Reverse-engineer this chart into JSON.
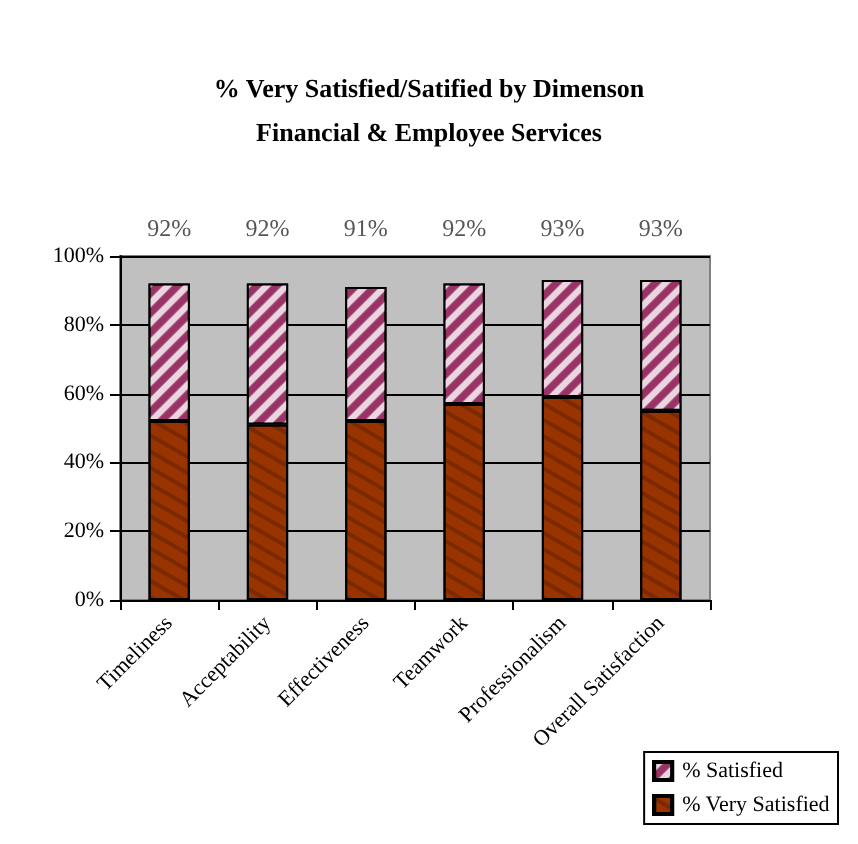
{
  "chart_data": {
    "type": "bar",
    "title": "% Very Satisfied/Satified by Dimenson\nFinancial & Employee Services",
    "categories": [
      "Timeliness",
      "Acceptability",
      "Effectiveness",
      "Teamwork",
      "Professionalism",
      "Overall Satisfaction"
    ],
    "stacked": true,
    "series": [
      {
        "name": "% Very Satisfied",
        "color": "#993300",
        "values": [
          52,
          51,
          52,
          57,
          59,
          55
        ]
      },
      {
        "name": "% Satisfied",
        "color": "#993366",
        "values": [
          40,
          41,
          39,
          35,
          34,
          38
        ]
      }
    ],
    "totals": [
      "92%",
      "92%",
      "91%",
      "92%",
      "93%",
      "93%"
    ],
    "ylim": [
      0,
      100
    ],
    "yticks": [
      {
        "value": 0,
        "label": "0%"
      },
      {
        "value": 20,
        "label": "20%"
      },
      {
        "value": 40,
        "label": "40%"
      },
      {
        "value": 60,
        "label": "60%"
      },
      {
        "value": 80,
        "label": "80%"
      },
      {
        "value": 100,
        "label": "100%"
      }
    ],
    "grid": "y",
    "legend": "bottom right"
  }
}
